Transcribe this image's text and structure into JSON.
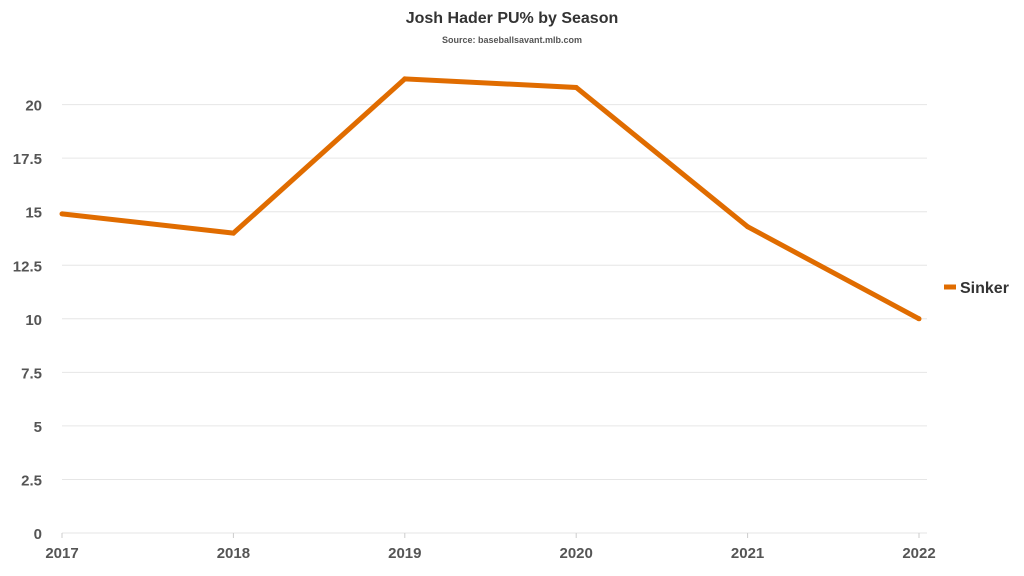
{
  "chart_data": {
    "type": "line",
    "title": "Josh Hader PU% by Season",
    "subtitle": "Source: baseballsavant.mlb.com",
    "categories": [
      "2017",
      "2018",
      "2019",
      "2020",
      "2021",
      "2022"
    ],
    "series": [
      {
        "name": "Sinker",
        "values": [
          14.9,
          14.0,
          21.2,
          20.8,
          14.3,
          10.0
        ],
        "color": "#e06c00"
      }
    ],
    "ylim": [
      0,
      22
    ],
    "yticks": [
      "0",
      "2.5",
      "5",
      "7.5",
      "10",
      "12.5",
      "15",
      "17.5",
      "20"
    ],
    "grid": true,
    "legend_position": "right"
  }
}
